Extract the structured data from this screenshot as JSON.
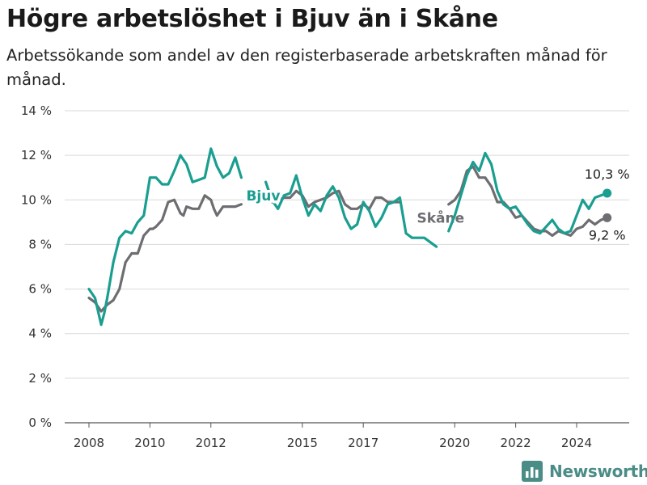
{
  "header": {
    "title": "Högre arbetslöshet i Bjuv än i Skåne",
    "subtitle": "Arbetssökande som andel av den registerbaserade arbetskraften månad för månad."
  },
  "brand": {
    "name": "Newsworthy",
    "icon": "bar-chart-icon",
    "color": "#4a8c86"
  },
  "chart_data": {
    "type": "line",
    "title": "Högre arbetslöshet i Bjuv än i Skåne",
    "subtitle": "Arbetssökande som andel av den registerbaserade arbetskraften månad för månad.",
    "xlabel": "",
    "ylabel": "",
    "ylim": [
      0,
      14
    ],
    "xlim": [
      2007.5,
      2025.8
    ],
    "y_ticks": [
      0,
      2,
      4,
      6,
      8,
      10,
      12,
      14
    ],
    "y_tick_labels": [
      "0 %",
      "2 %",
      "4 %",
      "6 %",
      "8 %",
      "10 %",
      "12 %",
      "14 %"
    ],
    "x_ticks": [
      2008,
      2010,
      2012,
      2015,
      2017,
      2020,
      2022,
      2024
    ],
    "x_tick_labels": [
      "2008",
      "2010",
      "2012",
      "2015",
      "2017",
      "2020",
      "2022",
      "2024"
    ],
    "grid": "horizontal",
    "legend": "inline labels",
    "series": [
      {
        "name": "Skåne",
        "color": "#6e6d72",
        "label_at": [
          2018.6,
          9.2
        ],
        "end_label": "9,2 %",
        "x": [
          2008.0,
          2008.2,
          2008.4,
          2008.6,
          2008.8,
          2009.0,
          2009.2,
          2009.4,
          2009.6,
          2009.8,
          2010.0,
          2010.1,
          2010.2,
          2010.4,
          2010.6,
          2010.8,
          2011.0,
          2011.1,
          2011.2,
          2011.4,
          2011.6,
          2011.8,
          2012.0,
          2012.1,
          2012.2,
          2012.4,
          2012.6,
          2012.8,
          2013.0,
          2013.9,
          2014.0,
          2014.2,
          2014.4,
          2014.6,
          2014.8,
          2015.0,
          2015.2,
          2015.4,
          2015.6,
          2015.8,
          2016.0,
          2016.2,
          2016.4,
          2016.6,
          2016.8,
          2017.0,
          2017.2,
          2017.4,
          2017.6,
          2017.8,
          2018.0,
          2018.2,
          2019.8,
          2020.0,
          2020.2,
          2020.4,
          2020.6,
          2020.8,
          2021.0,
          2021.2,
          2021.4,
          2021.6,
          2021.8,
          2022.0,
          2022.2,
          2022.4,
          2022.6,
          2022.8,
          2023.0,
          2023.2,
          2023.4,
          2023.6,
          2023.8,
          2024.0,
          2024.2,
          2024.4,
          2024.6,
          2024.8,
          2025.0
        ],
        "y": [
          5.6,
          5.4,
          5.0,
          5.3,
          5.5,
          6.0,
          7.2,
          7.6,
          7.6,
          8.4,
          8.7,
          8.7,
          8.8,
          9.1,
          9.9,
          10.0,
          9.4,
          9.3,
          9.7,
          9.6,
          9.6,
          10.2,
          10.0,
          9.6,
          9.3,
          9.7,
          9.7,
          9.7,
          9.8,
          10.2,
          9.9,
          10.0,
          10.1,
          10.1,
          10.4,
          10.2,
          9.7,
          9.9,
          10.0,
          10.1,
          10.3,
          10.4,
          9.8,
          9.6,
          9.6,
          9.8,
          9.6,
          10.1,
          10.1,
          9.9,
          9.9,
          9.9,
          9.8,
          10.0,
          10.4,
          11.3,
          11.5,
          11.0,
          11.0,
          10.6,
          9.9,
          9.9,
          9.6,
          9.2,
          9.3,
          9.0,
          8.7,
          8.6,
          8.6,
          8.4,
          8.6,
          8.5,
          8.4,
          8.7,
          8.8,
          9.1,
          8.9,
          9.1,
          9.2
        ]
      },
      {
        "name": "Bjuv",
        "color": "#1a9e90",
        "label_at": [
          2013.0,
          10.2
        ],
        "end_label": "10,3 %",
        "x": [
          2008.0,
          2008.2,
          2008.4,
          2008.5,
          2008.6,
          2008.8,
          2009.0,
          2009.2,
          2009.4,
          2009.6,
          2009.8,
          2010.0,
          2010.2,
          2010.4,
          2010.6,
          2010.8,
          2011.0,
          2011.2,
          2011.4,
          2011.6,
          2011.8,
          2012.0,
          2012.2,
          2012.4,
          2012.6,
          2012.8,
          2013.0,
          2013.8,
          2014.0,
          2014.2,
          2014.4,
          2014.6,
          2014.8,
          2015.0,
          2015.2,
          2015.4,
          2015.6,
          2015.8,
          2016.0,
          2016.2,
          2016.4,
          2016.6,
          2016.8,
          2017.0,
          2017.2,
          2017.4,
          2017.6,
          2017.8,
          2018.0,
          2018.2,
          2018.4,
          2018.6,
          2018.8,
          2019.0,
          2019.2,
          2019.4,
          2019.8,
          2020.0,
          2020.2,
          2020.4,
          2020.6,
          2020.8,
          2021.0,
          2021.2,
          2021.4,
          2021.6,
          2021.8,
          2022.0,
          2022.2,
          2022.4,
          2022.6,
          2022.8,
          2023.0,
          2023.2,
          2023.4,
          2023.6,
          2023.8,
          2024.0,
          2024.2,
          2024.4,
          2024.6,
          2024.8,
          2025.0
        ],
        "y": [
          6.0,
          5.6,
          4.4,
          4.9,
          5.6,
          7.2,
          8.3,
          8.6,
          8.5,
          9.0,
          9.3,
          11.0,
          11.0,
          10.7,
          10.7,
          11.3,
          12.0,
          11.6,
          10.8,
          10.9,
          11.0,
          12.3,
          11.5,
          11.0,
          11.2,
          11.9,
          11.0,
          10.8,
          10.0,
          9.6,
          10.2,
          10.3,
          11.1,
          10.1,
          9.3,
          9.8,
          9.5,
          10.2,
          10.6,
          10.1,
          9.2,
          8.7,
          8.9,
          9.9,
          9.5,
          8.8,
          9.2,
          9.8,
          9.9,
          10.1,
          8.5,
          8.3,
          8.3,
          8.3,
          8.1,
          7.9,
          8.6,
          9.3,
          10.2,
          11.1,
          11.7,
          11.3,
          12.1,
          11.6,
          10.4,
          9.8,
          9.6,
          9.7,
          9.3,
          8.9,
          8.6,
          8.5,
          8.8,
          9.1,
          8.7,
          8.5,
          8.6,
          9.3,
          10.0,
          9.6,
          10.1,
          10.2,
          10.3
        ]
      }
    ]
  }
}
